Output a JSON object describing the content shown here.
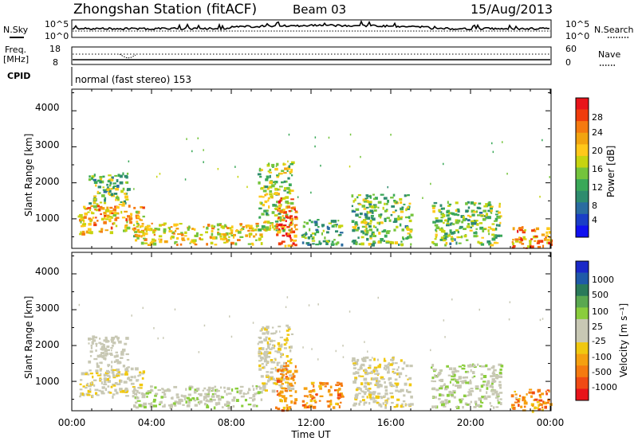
{
  "header": {
    "title": "Zhongshan Station (fitACF)",
    "beam": "Beam 03",
    "date": "15/Aug/2013"
  },
  "top_panels": {
    "nsky_label": "N.Sky",
    "nsky_ticks": [
      "10^5",
      "10^0"
    ],
    "nsearch_label": "N.Search",
    "nsearch_ticks": [
      "10^5",
      "10^0"
    ],
    "freq_label": "Freq.",
    "freq_unit": "[MHz]",
    "freq_ticks": [
      "18",
      "8"
    ],
    "nave_label": "Nave",
    "nave_ticks": [
      "60",
      "0"
    ],
    "cpid_label": "CPID",
    "cpid_value": "normal (fast stereo) 153"
  },
  "axes": {
    "ylabel": "Slant Range [km]",
    "yticks": [
      "4000",
      "3000",
      "2000",
      "1000"
    ],
    "xticks": [
      "00:00",
      "04:00",
      "08:00",
      "12:00",
      "16:00",
      "20:00",
      "00:00"
    ],
    "xlabel": "Time UT"
  },
  "power_colorbar": {
    "label": "Power [dB]",
    "ticks": [
      "28",
      "24",
      "20",
      "16",
      "12",
      "8",
      "4"
    ],
    "colors": [
      "#e8141a",
      "#f03c0c",
      "#f57a10",
      "#f2a410",
      "#ffc81a",
      "#c6d410",
      "#74c43c",
      "#3aa858",
      "#2e8c6e",
      "#2a6ca0",
      "#1a3ec6",
      "#1010f0"
    ]
  },
  "velocity_colorbar": {
    "label": "Velocity [m s⁻¹]",
    "ticks": [
      "1000",
      "500",
      "100",
      "25",
      "-25",
      "-100",
      "-500",
      "-1000"
    ],
    "colors": [
      "#1a28c8",
      "#1f5aa8",
      "#2a7a5a",
      "#5aa850",
      "#8acd3c",
      "#c8c8b4",
      "#c8c8b4",
      "#f0c810",
      "#f5a010",
      "#f57a10",
      "#f04a14",
      "#e8141a"
    ]
  },
  "chart_data": [
    {
      "type": "heatmap",
      "name": "power",
      "x_range_hours": [
        0,
        24
      ],
      "ylim": [
        180,
        4600
      ],
      "echo_regions": [
        {
          "t": [
            0.3,
            3.6
          ],
          "r": [
            600,
            1400
          ],
          "power_db": 22,
          "velocity_ms": -100
        },
        {
          "t": [
            0.8,
            2.8
          ],
          "r": [
            1400,
            2300
          ],
          "power_db": 14,
          "velocity_ms": 25
        },
        {
          "t": [
            3.0,
            9.5
          ],
          "r": [
            300,
            900
          ],
          "power_db": 20,
          "velocity_ms": 100
        },
        {
          "t": [
            9.3,
            11.0
          ],
          "r": [
            700,
            2600
          ],
          "power_db": 16,
          "velocity_ms": -100
        },
        {
          "t": [
            10.2,
            11.2
          ],
          "r": [
            200,
            1600
          ],
          "power_db": 28,
          "velocity_ms": -500
        },
        {
          "t": [
            11.5,
            13.5
          ],
          "r": [
            300,
            1000
          ],
          "power_db": 12,
          "velocity_ms": -500
        },
        {
          "t": [
            14.0,
            17.0
          ],
          "r": [
            300,
            1700
          ],
          "power_db": 14,
          "velocity_ms": -100
        },
        {
          "t": [
            18.0,
            21.5
          ],
          "r": [
            300,
            1500
          ],
          "power_db": 14,
          "velocity_ms": 100
        },
        {
          "t": [
            22.0,
            24.0
          ],
          "r": [
            200,
            800
          ],
          "power_db": 24,
          "velocity_ms": -500
        }
      ]
    }
  ]
}
